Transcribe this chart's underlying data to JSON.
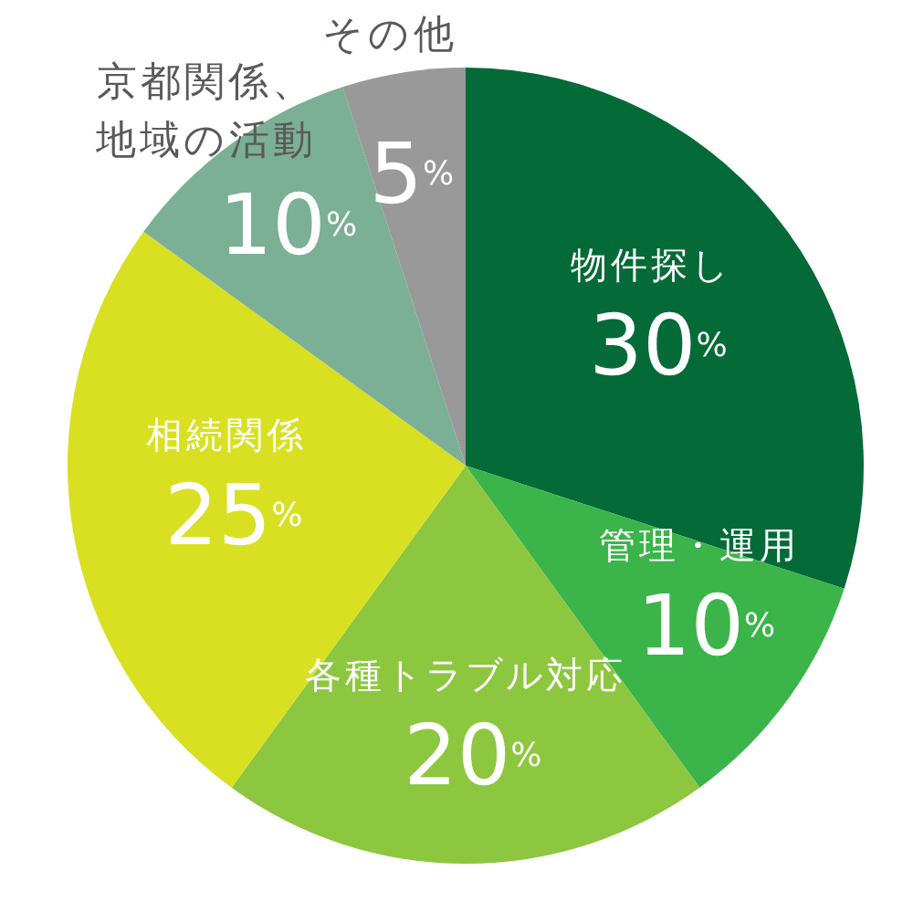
{
  "chart_data": {
    "type": "pie",
    "categories": [
      "物件探し",
      "管理・運用",
      "各種トラブル対応",
      "相続関係",
      "京都関係、地域の活動",
      "その他"
    ],
    "values": [
      30,
      10,
      20,
      25,
      10,
      5
    ],
    "value_labels": [
      "30%",
      "10%",
      "20%",
      "25%",
      "10%",
      "5%"
    ],
    "colors": [
      "#036a38",
      "#3bb54a",
      "#8dc63f",
      "#d9df21",
      "#7bb097",
      "#999999"
    ]
  }
}
